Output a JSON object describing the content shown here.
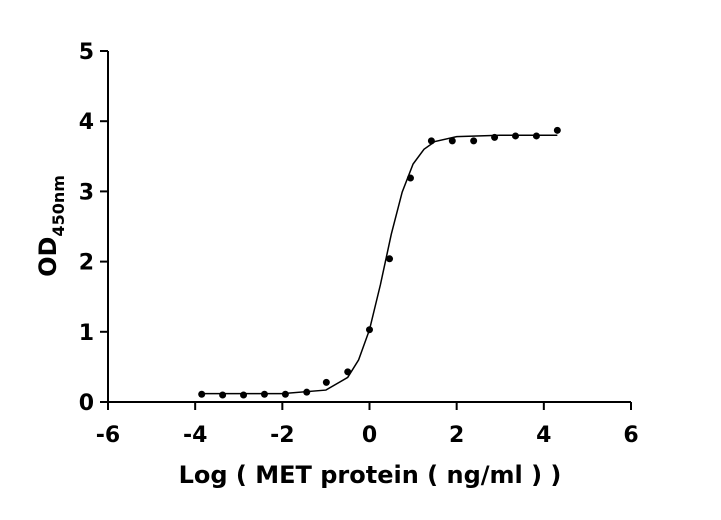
{
  "chart_data": {
    "type": "scatter",
    "xlabel": "Log ( MET protein ( ng/ml )    )",
    "ylabel": "OD",
    "ylabel_subscript": "450nm",
    "xlim": [
      -6,
      6
    ],
    "xticks": [
      -6,
      -4,
      -2,
      0,
      2,
      4,
      6
    ],
    "ylim": [
      0,
      5
    ],
    "yticks": [
      0,
      1,
      2,
      3,
      4,
      5
    ],
    "series": [
      {
        "type": "scatter",
        "color": "#000000",
        "x": [
          -3.85,
          -3.37,
          -2.89,
          -2.41,
          -1.93,
          -1.44,
          -0.99,
          -0.5,
          0.0,
          0.46,
          0.94,
          1.42,
          1.9,
          2.39,
          2.87,
          3.35,
          3.83,
          4.31
        ],
        "values": [
          0.11,
          0.1,
          0.1,
          0.11,
          0.11,
          0.14,
          0.28,
          0.43,
          1.03,
          2.04,
          3.19,
          3.72,
          3.72,
          3.72,
          3.77,
          3.79,
          3.79,
          3.87
        ]
      },
      {
        "type": "line",
        "color": "#000000",
        "x": [
          -3.85,
          -2,
          -1,
          -0.5,
          -0.25,
          0,
          0.25,
          0.5,
          0.75,
          1,
          1.25,
          1.5,
          2,
          3,
          4.31
        ],
        "values": [
          0.12,
          0.12,
          0.17,
          0.35,
          0.6,
          1.03,
          1.67,
          2.39,
          2.99,
          3.39,
          3.6,
          3.71,
          3.78,
          3.8,
          3.8
        ]
      }
    ]
  }
}
